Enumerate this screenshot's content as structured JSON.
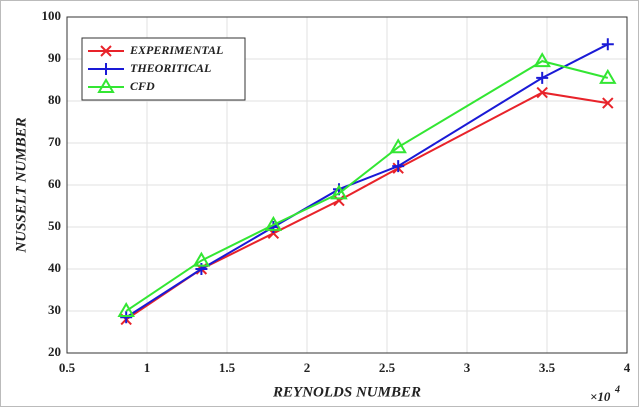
{
  "chart_data": {
    "type": "line",
    "xlabel": "REYNOLDS NUMBER",
    "ylabel": "NUSSELT NUMBER",
    "x_scale_label": "×10",
    "x_scale_exponent": "4",
    "x": [
      0.87,
      1.34,
      1.79,
      2.2,
      2.57,
      3.47,
      3.88
    ],
    "series": [
      {
        "name": "EXPERIMENTAL",
        "color": "#e8232a",
        "marker": "x",
        "values": [
          28,
          40,
          48.5,
          56.3,
          64,
          82,
          79.5
        ]
      },
      {
        "name": "THEORITICAL",
        "color": "#1a1ad6",
        "marker": "+",
        "values": [
          28.5,
          40,
          50,
          59,
          64.5,
          85.5,
          93.5
        ]
      },
      {
        "name": "CFD",
        "color": "#33e633",
        "marker": "triangle",
        "values": [
          30,
          42,
          50.5,
          58,
          69,
          89.5,
          85.5
        ]
      }
    ],
    "xlim": [
      0.5,
      4
    ],
    "xticks": [
      0.5,
      1,
      1.5,
      2,
      2.5,
      3,
      3.5,
      4
    ],
    "ylim": [
      20,
      100
    ],
    "yticks": [
      20,
      30,
      40,
      50,
      60,
      70,
      80,
      90,
      100
    ],
    "grid": true,
    "legend": "upper left"
  }
}
